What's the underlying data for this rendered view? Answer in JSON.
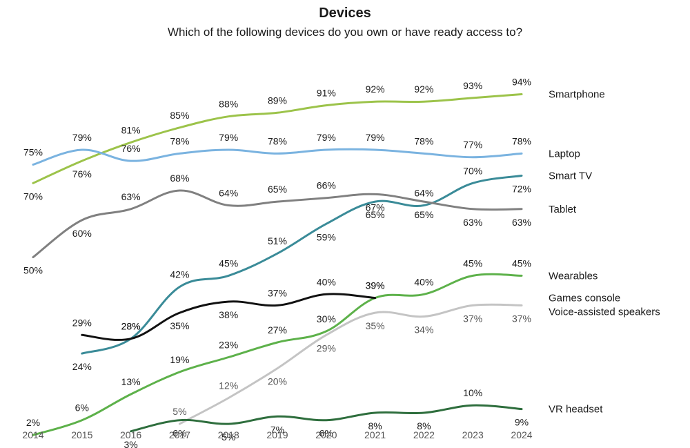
{
  "chart_data": {
    "type": "line",
    "title": "Devices",
    "subtitle": "Which of the following devices do you own or have ready access to?",
    "xlabel": "",
    "ylabel": "",
    "x": [
      2014,
      2015,
      2016,
      2017,
      2018,
      2019,
      2020,
      2021,
      2022,
      2023,
      2024
    ],
    "grid": false,
    "legend": "right-end labels",
    "series": [
      {
        "name": "Smartphone",
        "color": "#9cc34a",
        "values": [
          70,
          76,
          81,
          85,
          88,
          89,
          91,
          92,
          92,
          93,
          94
        ]
      },
      {
        "name": "Laptop",
        "color": "#7ab3e0",
        "values": [
          75,
          79,
          76,
          78,
          79,
          78,
          79,
          79,
          78,
          77,
          78
        ]
      },
      {
        "name": "Smart TV",
        "color": "#3a8b98",
        "values": [
          null,
          24,
          28,
          42,
          45,
          51,
          59,
          65,
          64,
          70,
          72
        ]
      },
      {
        "name": "Tablet",
        "color": "#808080",
        "values": [
          50,
          60,
          63,
          68,
          64,
          65,
          66,
          67,
          65,
          63,
          63
        ]
      },
      {
        "name": "Wearables",
        "color": "#5db14a",
        "values": [
          2,
          6,
          13,
          19,
          23,
          27,
          30,
          39,
          40,
          45,
          45
        ]
      },
      {
        "name": "Games console",
        "color": "#111111",
        "values": [
          null,
          29,
          28,
          35,
          38,
          37,
          40,
          39,
          null,
          null,
          null
        ]
      },
      {
        "name": "Voice-assisted speakers",
        "color": "#c4c4c4",
        "values": [
          null,
          null,
          null,
          5,
          12,
          20,
          29,
          35,
          34,
          37,
          37
        ]
      },
      {
        "name": "VR headset",
        "color": "#2e6e3d",
        "values": [
          null,
          null,
          3,
          6,
          5,
          7,
          6,
          8,
          8,
          10,
          9
        ]
      }
    ]
  }
}
